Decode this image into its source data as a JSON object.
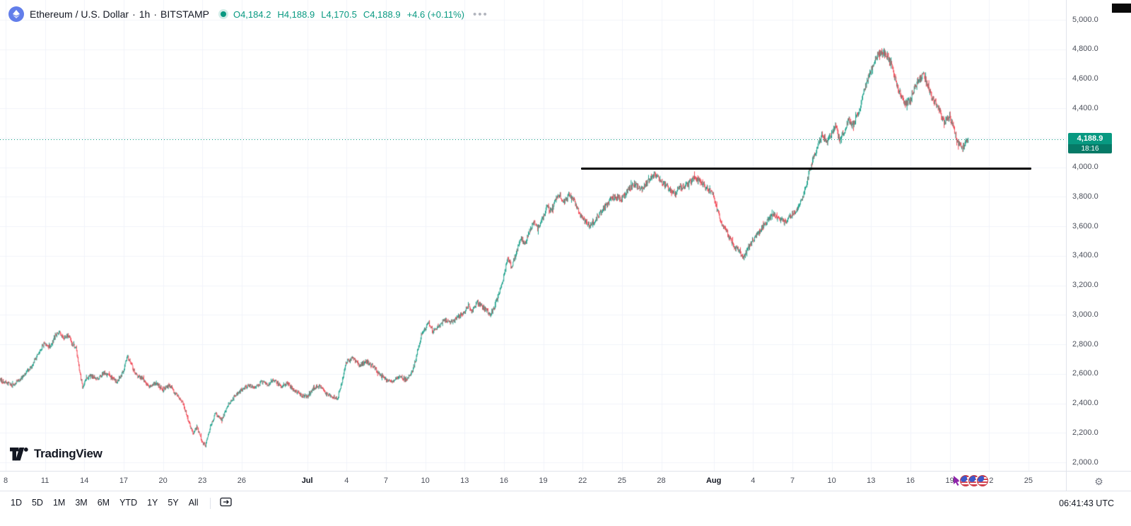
{
  "header": {
    "symbol": "Ethereum / U.S. Dollar",
    "sep": "·",
    "interval": "1h",
    "exchange": "BITSTAMP",
    "ohlc": [
      {
        "label": "O",
        "value": "4,184.2"
      },
      {
        "label": "H",
        "value": "4,188.9"
      },
      {
        "label": "L",
        "value": "4,170.5"
      },
      {
        "label": "C",
        "value": "4,188.9"
      }
    ],
    "change": "+4.6 (+0.11%)",
    "more": "•••"
  },
  "price_axis": {
    "labels": [
      {
        "text": "5,000.0",
        "value": 5000
      },
      {
        "text": "4,800.0",
        "value": 4800
      },
      {
        "text": "4,600.0",
        "value": 4600
      },
      {
        "text": "4,400.0",
        "value": 4400
      },
      {
        "text": "4,200.0",
        "value": 4200
      },
      {
        "text": "4,000.0",
        "value": 4000
      },
      {
        "text": "3,800.0",
        "value": 3800
      },
      {
        "text": "3,600.0",
        "value": 3600
      },
      {
        "text": "3,400.0",
        "value": 3400
      },
      {
        "text": "3,200.0",
        "value": 3200
      },
      {
        "text": "3,000.0",
        "value": 3000
      },
      {
        "text": "2,800.0",
        "value": 2800
      },
      {
        "text": "2,600.0",
        "value": 2600
      },
      {
        "text": "2,400.0",
        "value": 2400
      },
      {
        "text": "2,200.0",
        "value": 2200
      },
      {
        "text": "2,000.0",
        "value": 2000
      }
    ],
    "last_price_label": "4,188.9",
    "countdown": "18:16"
  },
  "time_axis": {
    "labels": [
      {
        "text": "8",
        "day": 0
      },
      {
        "text": "11",
        "day": 3
      },
      {
        "text": "14",
        "day": 6
      },
      {
        "text": "17",
        "day": 9
      },
      {
        "text": "20",
        "day": 12
      },
      {
        "text": "23",
        "day": 15
      },
      {
        "text": "26",
        "day": 18
      },
      {
        "text": "Jul",
        "day": 23,
        "month": true
      },
      {
        "text": "4",
        "day": 26
      },
      {
        "text": "7",
        "day": 29
      },
      {
        "text": "10",
        "day": 32
      },
      {
        "text": "13",
        "day": 35
      },
      {
        "text": "16",
        "day": 38
      },
      {
        "text": "19",
        "day": 41
      },
      {
        "text": "22",
        "day": 44
      },
      {
        "text": "25",
        "day": 47
      },
      {
        "text": "28",
        "day": 50
      },
      {
        "text": "Aug",
        "day": 54,
        "month": true
      },
      {
        "text": "4",
        "day": 57
      },
      {
        "text": "7",
        "day": 60
      },
      {
        "text": "10",
        "day": 63
      },
      {
        "text": "13",
        "day": 66
      },
      {
        "text": "16",
        "day": 69
      },
      {
        "text": "19",
        "day": 72
      },
      {
        "text": "22",
        "day": 75
      },
      {
        "text": "25",
        "day": 78
      },
      {
        "text": "2",
        "day": 82
      }
    ]
  },
  "toolbar": {
    "ranges": [
      "1D",
      "5D",
      "1M",
      "3M",
      "6M",
      "YTD",
      "1Y",
      "5Y",
      "All"
    ],
    "clock": "06:41:43 UTC"
  },
  "logo": {
    "text": "TradingView"
  },
  "chart_data": {
    "type": "candlestick",
    "symbol": "ETH/USD",
    "exchange": "BITSTAMP",
    "interval": "1h",
    "open": 4184.2,
    "high": 4188.9,
    "low": 4170.5,
    "close": 4188.9,
    "change_abs": 4.6,
    "change_pct": 0.11,
    "last_price": 4188.9,
    "ylim": [
      2000,
      5000
    ],
    "day_start": -0.45,
    "day_end": 73.42,
    "colors": {
      "up": "#089981",
      "down": "#f23645",
      "grid": "#f0f3fa"
    },
    "trendline": {
      "price": 3990,
      "start_day": 43.9,
      "end_day": 78.2,
      "color": "#000000"
    },
    "price_path": [
      [
        -0.5,
        2560
      ],
      [
        0,
        2545
      ],
      [
        0.5,
        2520
      ],
      [
        1,
        2555
      ],
      [
        1.5,
        2600
      ],
      [
        2,
        2650
      ],
      [
        2.5,
        2740
      ],
      [
        3,
        2810
      ],
      [
        3.4,
        2780
      ],
      [
        3.8,
        2860
      ],
      [
        4.1,
        2885
      ],
      [
        4.4,
        2840
      ],
      [
        4.8,
        2865
      ],
      [
        5.1,
        2800
      ],
      [
        5.4,
        2770
      ],
      [
        5.6,
        2650
      ],
      [
        5.9,
        2500
      ],
      [
        6.1,
        2560
      ],
      [
        6.5,
        2590
      ],
      [
        7,
        2565
      ],
      [
        7.5,
        2605
      ],
      [
        8,
        2580
      ],
      [
        8.5,
        2545
      ],
      [
        9,
        2615
      ],
      [
        9.3,
        2720
      ],
      [
        9.6,
        2660
      ],
      [
        10,
        2590
      ],
      [
        10.5,
        2565
      ],
      [
        11,
        2510
      ],
      [
        11.5,
        2540
      ],
      [
        12,
        2490
      ],
      [
        12.5,
        2525
      ],
      [
        13,
        2460
      ],
      [
        13.5,
        2410
      ],
      [
        14,
        2270
      ],
      [
        14.3,
        2190
      ],
      [
        14.6,
        2240
      ],
      [
        15,
        2140
      ],
      [
        15.25,
        2110
      ],
      [
        15.6,
        2230
      ],
      [
        16,
        2330
      ],
      [
        16.5,
        2290
      ],
      [
        17,
        2390
      ],
      [
        17.5,
        2450
      ],
      [
        18,
        2490
      ],
      [
        18.5,
        2525
      ],
      [
        19,
        2505
      ],
      [
        19.5,
        2545
      ],
      [
        20,
        2530
      ],
      [
        20.5,
        2555
      ],
      [
        21,
        2515
      ],
      [
        21.5,
        2535
      ],
      [
        22,
        2490
      ],
      [
        22.5,
        2460
      ],
      [
        23,
        2445
      ],
      [
        23.5,
        2505
      ],
      [
        24,
        2520
      ],
      [
        24.5,
        2465
      ],
      [
        25,
        2445
      ],
      [
        25.3,
        2425
      ],
      [
        25.7,
        2560
      ],
      [
        26,
        2680
      ],
      [
        26.5,
        2705
      ],
      [
        27,
        2655
      ],
      [
        27.5,
        2685
      ],
      [
        28,
        2660
      ],
      [
        28.5,
        2605
      ],
      [
        29,
        2565
      ],
      [
        29.5,
        2545
      ],
      [
        30,
        2585
      ],
      [
        30.5,
        2560
      ],
      [
        31,
        2605
      ],
      [
        31.3,
        2700
      ],
      [
        31.7,
        2860
      ],
      [
        32,
        2905
      ],
      [
        32.3,
        2950
      ],
      [
        32.6,
        2885
      ],
      [
        33,
        2925
      ],
      [
        33.5,
        2965
      ],
      [
        34,
        2945
      ],
      [
        34.5,
        2985
      ],
      [
        35,
        3010
      ],
      [
        35.3,
        3065
      ],
      [
        35.6,
        3025
      ],
      [
        36,
        3085
      ],
      [
        36.5,
        3045
      ],
      [
        37,
        3005
      ],
      [
        37.3,
        3055
      ],
      [
        37.7,
        3160
      ],
      [
        38,
        3260
      ],
      [
        38.3,
        3385
      ],
      [
        38.6,
        3325
      ],
      [
        39,
        3425
      ],
      [
        39.3,
        3525
      ],
      [
        39.6,
        3485
      ],
      [
        40,
        3565
      ],
      [
        40.3,
        3625
      ],
      [
        40.6,
        3585
      ],
      [
        41,
        3655
      ],
      [
        41.3,
        3745
      ],
      [
        41.6,
        3705
      ],
      [
        42,
        3785
      ],
      [
        42.3,
        3805
      ],
      [
        42.6,
        3765
      ],
      [
        43,
        3820
      ],
      [
        43.3,
        3785
      ],
      [
        43.6,
        3725
      ],
      [
        44,
        3655
      ],
      [
        44.5,
        3605
      ],
      [
        45,
        3645
      ],
      [
        45.5,
        3705
      ],
      [
        46,
        3765
      ],
      [
        46.5,
        3805
      ],
      [
        47,
        3785
      ],
      [
        47.5,
        3855
      ],
      [
        48,
        3885
      ],
      [
        48.5,
        3845
      ],
      [
        49,
        3905
      ],
      [
        49.5,
        3950
      ],
      [
        50,
        3905
      ],
      [
        50.5,
        3865
      ],
      [
        51,
        3825
      ],
      [
        51.5,
        3865
      ],
      [
        52,
        3885
      ],
      [
        52.5,
        3925
      ],
      [
        53,
        3905
      ],
      [
        53.5,
        3865
      ],
      [
        54,
        3805
      ],
      [
        54.3,
        3705
      ],
      [
        54.6,
        3625
      ],
      [
        55,
        3565
      ],
      [
        55.3,
        3505
      ],
      [
        55.6,
        3465
      ],
      [
        56,
        3425
      ],
      [
        56.3,
        3385
      ],
      [
        56.6,
        3445
      ],
      [
        57,
        3505
      ],
      [
        57.5,
        3565
      ],
      [
        58,
        3625
      ],
      [
        58.5,
        3685
      ],
      [
        59,
        3655
      ],
      [
        59.5,
        3625
      ],
      [
        60,
        3685
      ],
      [
        60.5,
        3725
      ],
      [
        61,
        3855
      ],
      [
        61.3,
        3965
      ],
      [
        61.6,
        4060
      ],
      [
        62,
        4155
      ],
      [
        62.3,
        4225
      ],
      [
        62.6,
        4165
      ],
      [
        63,
        4225
      ],
      [
        63.3,
        4285
      ],
      [
        63.6,
        4185
      ],
      [
        64,
        4245
      ],
      [
        64.3,
        4325
      ],
      [
        64.6,
        4285
      ],
      [
        65,
        4355
      ],
      [
        65.3,
        4455
      ],
      [
        65.6,
        4555
      ],
      [
        66,
        4655
      ],
      [
        66.3,
        4725
      ],
      [
        66.6,
        4765
      ],
      [
        67,
        4785
      ],
      [
        67.3,
        4745
      ],
      [
        67.6,
        4685
      ],
      [
        68,
        4555
      ],
      [
        68.3,
        4485
      ],
      [
        68.6,
        4425
      ],
      [
        69,
        4455
      ],
      [
        69.3,
        4525
      ],
      [
        69.6,
        4585
      ],
      [
        70,
        4625
      ],
      [
        70.3,
        4565
      ],
      [
        70.6,
        4485
      ],
      [
        71,
        4425
      ],
      [
        71.3,
        4365
      ],
      [
        71.6,
        4305
      ],
      [
        72,
        4345
      ],
      [
        72.3,
        4265
      ],
      [
        72.6,
        4185
      ],
      [
        73,
        4125
      ],
      [
        73.2,
        4155
      ],
      [
        73.42,
        4188.9
      ]
    ]
  }
}
